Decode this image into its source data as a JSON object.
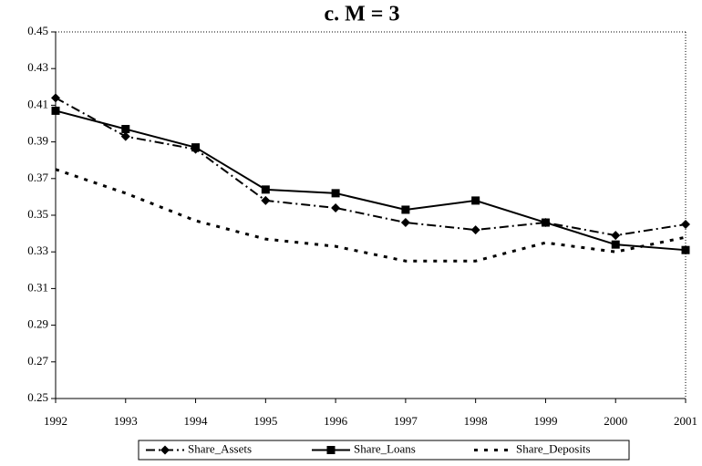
{
  "chart_data": {
    "type": "line",
    "title": "c. M = 3",
    "categories": [
      "1992",
      "1993",
      "1994",
      "1995",
      "1996",
      "1997",
      "1998",
      "1999",
      "2000",
      "2001"
    ],
    "series": [
      {
        "name": "Share_Assets",
        "color": "#000000",
        "marker": "diamond",
        "line_style": "dashdot",
        "values": [
          0.414,
          0.393,
          0.386,
          0.358,
          0.354,
          0.346,
          0.342,
          0.346,
          0.339,
          0.345
        ]
      },
      {
        "name": "Share_Loans",
        "color": "#000000",
        "marker": "square",
        "line_style": "solid",
        "values": [
          0.407,
          0.397,
          0.387,
          0.364,
          0.362,
          0.353,
          0.358,
          0.346,
          0.334,
          0.331
        ]
      },
      {
        "name": "Share_Deposits",
        "color": "#000000",
        "marker": "none",
        "line_style": "dotted",
        "values": [
          0.375,
          0.362,
          0.347,
          0.337,
          0.333,
          0.325,
          0.325,
          0.335,
          0.33,
          0.338
        ]
      }
    ],
    "ylim": [
      0.25,
      0.45
    ],
    "yticks": [
      0.25,
      0.27,
      0.29,
      0.31,
      0.33,
      0.35,
      0.37,
      0.39,
      0.41,
      0.43,
      0.45
    ],
    "legend": "bottom"
  }
}
